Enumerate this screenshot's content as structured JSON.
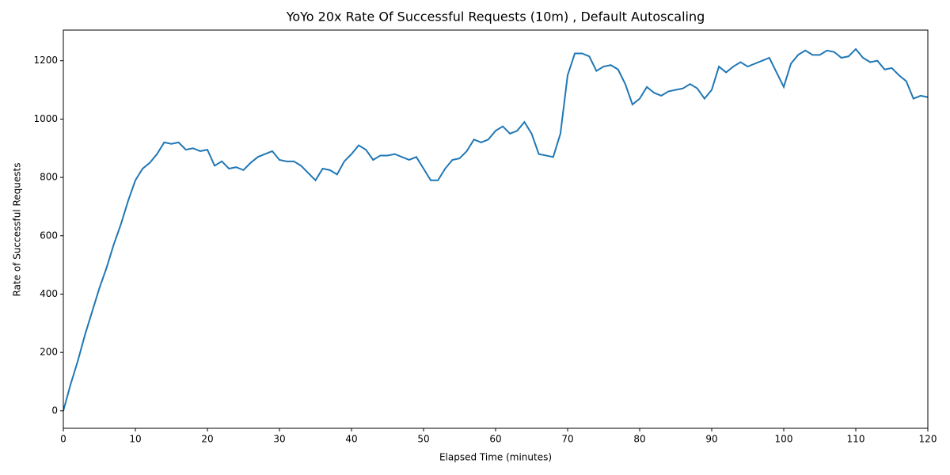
{
  "chart_data": {
    "type": "line",
    "title": "YoYo 20x Rate Of Successful Requests (10m) , Default Autoscaling",
    "x_label": "Elapsed Time (minutes)",
    "y_label": "Rate of Successful Requests",
    "x": [
      0,
      1,
      2,
      3,
      4,
      5,
      6,
      7,
      8,
      9,
      10,
      11,
      12,
      13,
      14,
      15,
      16,
      17,
      18,
      19,
      20,
      21,
      22,
      23,
      24,
      25,
      26,
      27,
      28,
      29,
      30,
      31,
      32,
      33,
      34,
      35,
      36,
      37,
      38,
      39,
      40,
      41,
      42,
      43,
      44,
      45,
      46,
      47,
      48,
      49,
      50,
      51,
      52,
      53,
      54,
      55,
      56,
      57,
      58,
      59,
      60,
      61,
      62,
      63,
      64,
      65,
      66,
      67,
      68,
      69,
      70,
      71,
      72,
      73,
      74,
      75,
      76,
      77,
      78,
      79,
      80,
      81,
      82,
      83,
      84,
      85,
      86,
      87,
      88,
      89,
      90,
      91,
      92,
      93,
      94,
      95,
      96,
      97,
      98,
      99,
      100,
      101,
      102,
      103,
      104,
      105,
      106,
      107,
      108,
      109,
      110,
      111,
      112,
      113,
      114,
      115,
      116,
      117,
      118,
      119,
      120
    ],
    "series": [
      {
        "color": "#1f77b4",
        "values": [
          0,
          90,
          170,
          260,
          340,
          420,
          490,
          570,
          640,
          720,
          790,
          830,
          850,
          880,
          920,
          915,
          920,
          895,
          900,
          890,
          895,
          840,
          855,
          830,
          835,
          825,
          850,
          870,
          880,
          890,
          860,
          855,
          855,
          840,
          815,
          790,
          830,
          825,
          810,
          855,
          880,
          910,
          895,
          860,
          875,
          875,
          880,
          870,
          860,
          870,
          830,
          790,
          790,
          830,
          860,
          865,
          890,
          930,
          920,
          930,
          960,
          975,
          950,
          960,
          990,
          950,
          880,
          875,
          870,
          950,
          1150,
          1225,
          1225,
          1215,
          1165,
          1180,
          1185,
          1170,
          1120,
          1050,
          1070,
          1110,
          1090,
          1080,
          1095,
          1100,
          1105,
          1120,
          1105,
          1070,
          1100,
          1180,
          1160,
          1180,
          1195,
          1180,
          1190,
          1200,
          1210,
          1160,
          1110,
          1190,
          1220,
          1235,
          1220,
          1220,
          1235,
          1230,
          1210,
          1215,
          1240,
          1210,
          1195,
          1200,
          1170,
          1175,
          1150,
          1130,
          1070,
          1080,
          1075
        ]
      }
    ],
    "xlim": [
      0,
      120
    ],
    "ylim": [
      -60,
      1305
    ],
    "xticks": [
      0,
      10,
      20,
      30,
      40,
      50,
      60,
      70,
      80,
      90,
      100,
      110,
      120
    ],
    "yticks": [
      0,
      200,
      400,
      600,
      800,
      1000,
      1200
    ]
  }
}
